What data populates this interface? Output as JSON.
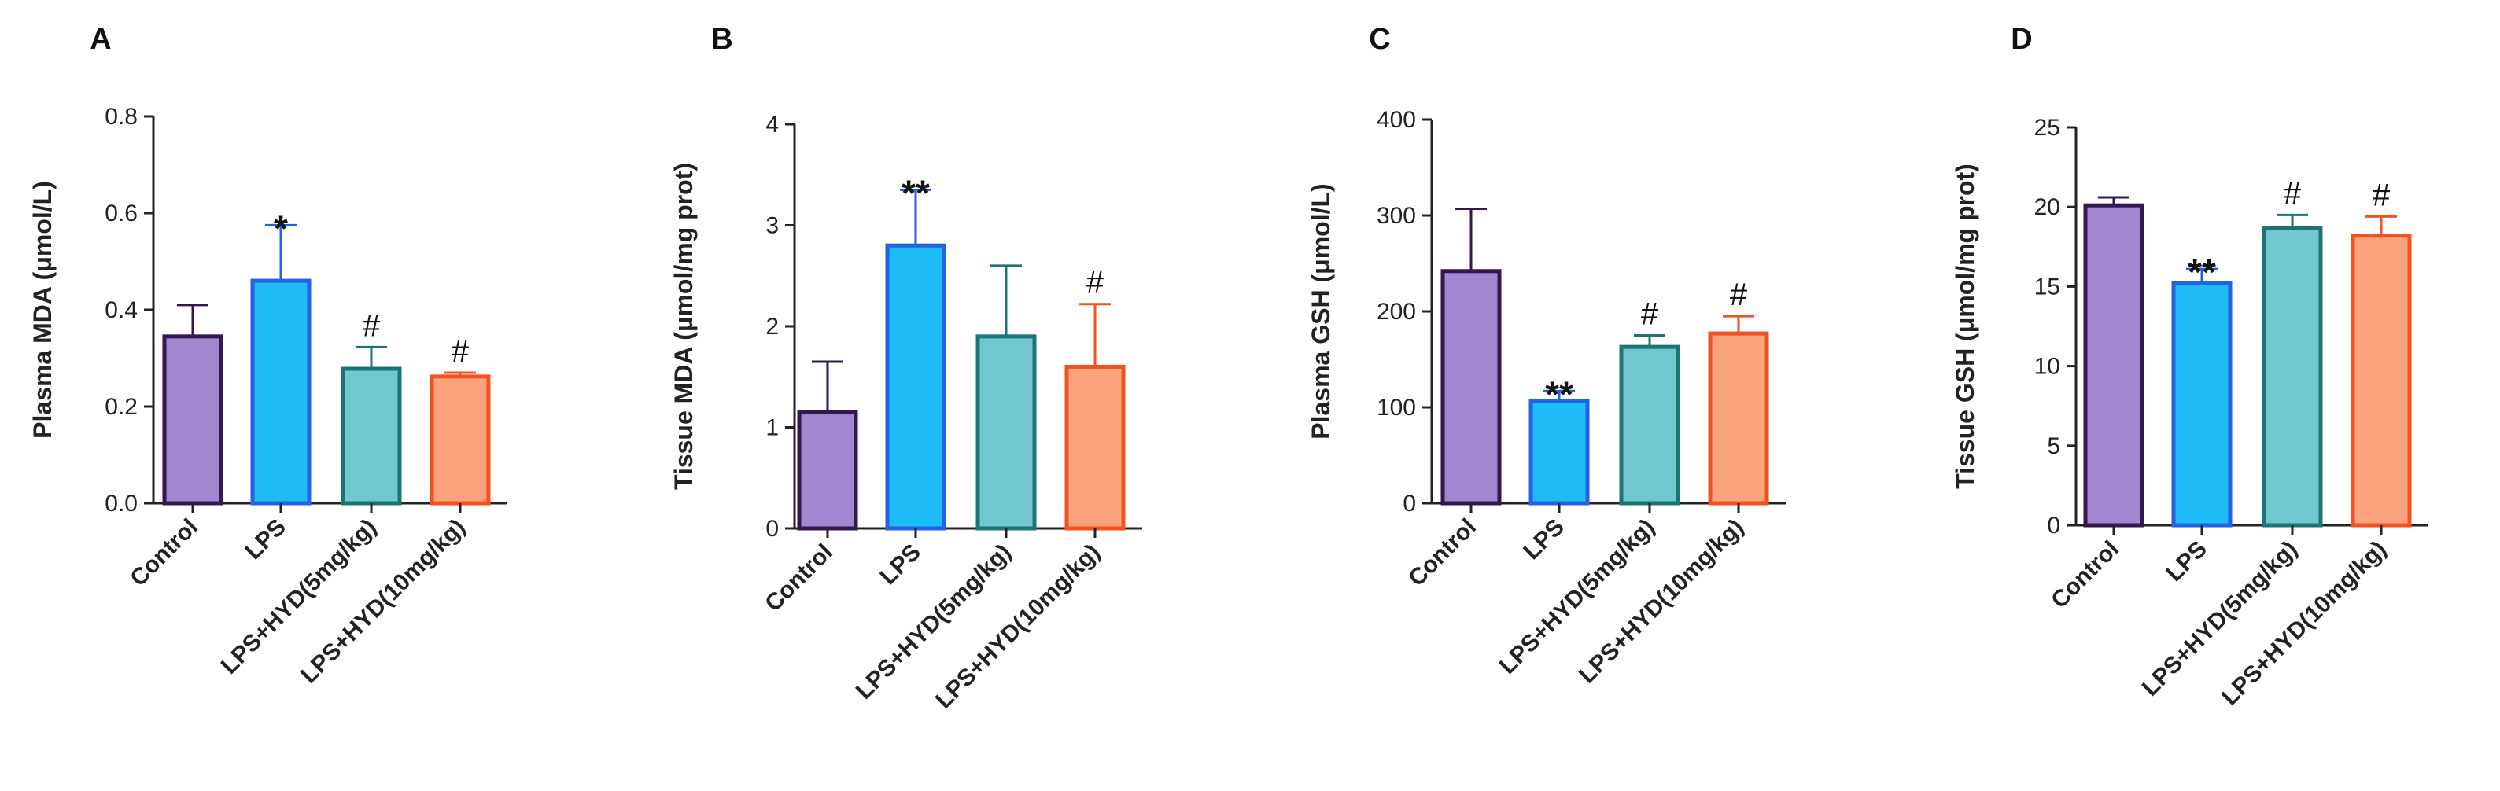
{
  "chart_data": [
    {
      "type": "bar",
      "panel": "A",
      "ylabel": "Plasma MDA (μmol/L)",
      "ylim": [
        0,
        0.8
      ],
      "yticks": [
        "0.0",
        "0.2",
        "0.4",
        "0.6",
        "0.8"
      ],
      "categories": [
        "Control",
        "LPS",
        "LPS+HYD(5mg/kg)",
        "LPS+HYD(10mg/kg)"
      ],
      "values": [
        0.345,
        0.46,
        0.278,
        0.262
      ],
      "errors": [
        0.065,
        0.115,
        0.045,
        0.008
      ],
      "significance": [
        "",
        "*",
        "#",
        "#"
      ]
    },
    {
      "type": "bar",
      "panel": "B",
      "ylabel": "Tissue MDA (μmol/mg prot)",
      "ylim": [
        0,
        4
      ],
      "yticks": [
        "0",
        "1",
        "2",
        "3",
        "4"
      ],
      "categories": [
        "Control",
        "LPS",
        "LPS+HYD(5mg/kg)",
        "LPS+HYD(10mg/kg)"
      ],
      "values": [
        1.15,
        2.8,
        1.9,
        1.6
      ],
      "errors": [
        0.5,
        0.55,
        0.7,
        0.62
      ],
      "significance": [
        "",
        "**",
        "",
        "#"
      ]
    },
    {
      "type": "bar",
      "panel": "C",
      "ylabel": "Plasma GSH (μmol/L)",
      "ylim": [
        0,
        400
      ],
      "yticks": [
        "0",
        "100",
        "200",
        "300",
        "400"
      ],
      "categories": [
        "Control",
        "LPS",
        "LPS+HYD(5mg/kg)",
        "LPS+HYD(10mg/kg)"
      ],
      "values": [
        242,
        107,
        163,
        177
      ],
      "errors": [
        65,
        10,
        12,
        18
      ],
      "significance": [
        "",
        "**",
        "#",
        "#"
      ]
    },
    {
      "type": "bar",
      "panel": "D",
      "ylabel": "Tissue GSH (μmol/mg prot)",
      "ylim": [
        0,
        25
      ],
      "yticks": [
        "0",
        "5",
        "10",
        "15",
        "20",
        "25"
      ],
      "categories": [
        "Control",
        "LPS",
        "LPS+HYD(5mg/kg)",
        "LPS+HYD(10mg/kg)"
      ],
      "values": [
        20.1,
        15.2,
        18.7,
        18.2
      ],
      "errors": [
        0.5,
        0.9,
        0.8,
        1.2
      ],
      "significance": [
        "",
        "**",
        "#",
        "#"
      ]
    }
  ],
  "colors": {
    "fills": [
      "#a087cf",
      "#1ebcf7",
      "#71c7cf",
      "#fba37e"
    ],
    "strokes": [
      "#33174f",
      "#2461e4",
      "#1c7475",
      "#f5501f"
    ],
    "star": "#111111",
    "hash": "#111111"
  }
}
